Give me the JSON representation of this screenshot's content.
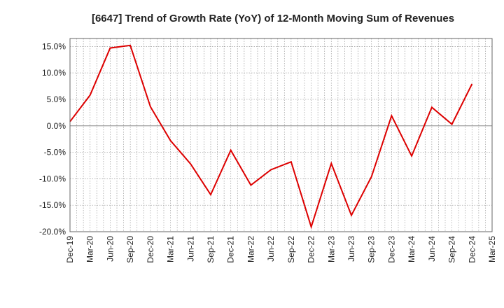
{
  "chart_data": {
    "type": "line",
    "title": "[6647]  Trend of Growth Rate (YoY) of 12-Month Moving Sum of Revenues",
    "xlabel": "",
    "ylabel": "",
    "ylim": [
      -20,
      16.5
    ],
    "yticks": [
      15,
      10,
      5,
      0,
      -5,
      -10,
      -15,
      -20
    ],
    "ytick_labels": [
      "15.0%",
      "10.0%",
      "5.0%",
      "0.0%",
      "-5.0%",
      "-10.0%",
      "-15.0%",
      "-20.0%"
    ],
    "xtick_labels": [
      "Dec-19",
      "Mar-20",
      "Jun-20",
      "Sep-20",
      "Dec-20",
      "Mar-21",
      "Jun-21",
      "Sep-21",
      "Dec-21",
      "Mar-22",
      "Jun-22",
      "Sep-22",
      "Dec-22",
      "Mar-23",
      "Jun-23",
      "Sep-23",
      "Dec-23",
      "Mar-24",
      "Jun-24",
      "Sep-24",
      "Dec-24",
      "Mar-25"
    ],
    "grid": true,
    "series": [
      {
        "color": "#dd0000",
        "values": [
          0.8,
          5.8,
          14.7,
          15.2,
          3.6,
          -2.8,
          -7.2,
          -13.0,
          -4.6,
          -11.2,
          -8.3,
          -6.8,
          -19.1,
          -7.1,
          -16.9,
          -9.6,
          1.9,
          -5.7,
          3.5,
          0.3,
          7.9
        ]
      }
    ]
  }
}
